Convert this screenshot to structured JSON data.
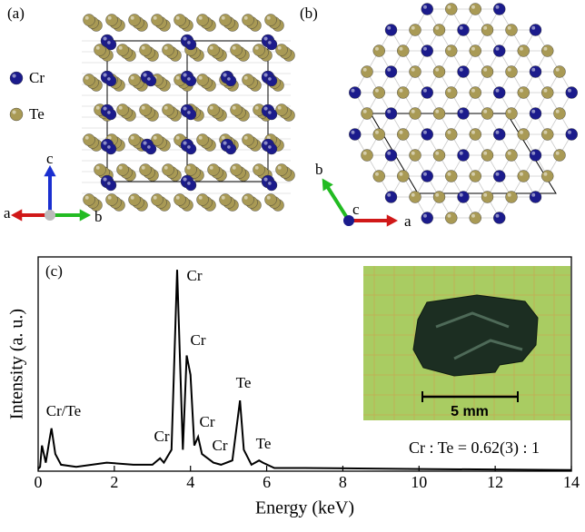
{
  "panel_a": {
    "label": "(a)",
    "legend": [
      "Cr",
      "Te"
    ],
    "axes": [
      "a",
      "b",
      "c"
    ]
  },
  "panel_b": {
    "label": "(b)",
    "axes": [
      "a",
      "b",
      "c"
    ]
  },
  "chart_data": {
    "type": "line",
    "panel_label": "(c)",
    "xlabel": "Energy (keV)",
    "ylabel": "Intensity (a. u.)",
    "color": "#000000",
    "x": [
      0.0,
      0.05,
      0.1,
      0.2,
      0.3,
      0.35,
      0.45,
      0.6,
      1.0,
      1.8,
      2.5,
      3.0,
      3.2,
      3.3,
      3.5,
      3.65,
      3.8,
      3.9,
      4.0,
      4.1,
      4.2,
      4.3,
      4.45,
      4.6,
      4.8,
      5.1,
      5.3,
      5.4,
      5.6,
      5.8,
      5.9,
      6.2,
      7.0,
      10.0,
      14.0
    ],
    "values": [
      1,
      2,
      12,
      4,
      15,
      20,
      8,
      3,
      2,
      4,
      3,
      3,
      6,
      4,
      10,
      94,
      10,
      54,
      45,
      12,
      16,
      8,
      6,
      4,
      3,
      5,
      33,
      10,
      3,
      5,
      4,
      1.5,
      1.5,
      1,
      0.5
    ],
    "xlim": [
      0,
      14
    ],
    "xticks": [
      0,
      2,
      4,
      6,
      8,
      10,
      12,
      14
    ],
    "ylim": [
      0,
      100
    ],
    "annotations": [
      "Cr/Te",
      "Cr",
      "Cr",
      "Cr",
      "Cr",
      "Cr",
      "Te",
      "Te"
    ],
    "ratio": "Cr : Te = 0.62(3) : 1",
    "inset_scale": "5 mm"
  }
}
